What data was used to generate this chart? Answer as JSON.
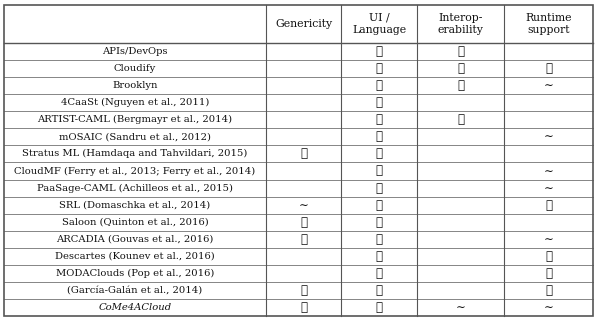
{
  "col_headers": [
    "Genericity",
    "UI /\nLanguage",
    "Interop-\nerability",
    "Runtime\nsupport"
  ],
  "rows": [
    {
      "name": "APIs/DevOps",
      "genericity": "",
      "ui": "X",
      "interop": "X",
      "runtime": ""
    },
    {
      "name": "Cloudify",
      "genericity": "",
      "ui": "X",
      "interop": "X",
      "runtime": "X"
    },
    {
      "name": "Brooklyn",
      "genericity": "",
      "ui": "X",
      "interop": "X",
      "runtime": "~"
    },
    {
      "name": "4CaaSt (Nguyen et al., 2011)",
      "genericity": "",
      "ui": "X",
      "interop": "",
      "runtime": ""
    },
    {
      "name": "ARTIST-CAML (Bergmayr et al., 2014)",
      "genericity": "",
      "ui": "X",
      "interop": "X",
      "runtime": ""
    },
    {
      "name": "mOSAIC (Sandru et al., 2012)",
      "genericity": "",
      "ui": "X",
      "interop": "",
      "runtime": "~"
    },
    {
      "name": "Stratus ML (Hamdaqa and Tahvildari, 2015)",
      "genericity": "X",
      "ui": "X",
      "interop": "",
      "runtime": ""
    },
    {
      "name": "CloudMF (Ferry et al., 2013; Ferry et al., 2014)",
      "genericity": "",
      "ui": "X",
      "interop": "",
      "runtime": "~"
    },
    {
      "name": "PaaSage-CAML (Achilleos et al., 2015)",
      "genericity": "",
      "ui": "X",
      "interop": "",
      "runtime": "~"
    },
    {
      "name": "SRL (Domaschka et al., 2014)",
      "genericity": "~",
      "ui": "X",
      "interop": "",
      "runtime": "X"
    },
    {
      "name": "Saloon (Quinton et al., 2016)",
      "genericity": "X",
      "ui": "X",
      "interop": "",
      "runtime": ""
    },
    {
      "name": "ARCADIA (Gouvas et al., 2016)",
      "genericity": "X",
      "ui": "X",
      "interop": "",
      "runtime": "~"
    },
    {
      "name": "Descartes (Kounev et al., 2016)",
      "genericity": "",
      "ui": "X",
      "interop": "",
      "runtime": "X"
    },
    {
      "name": "MODAClouds (Pop et al., 2016)",
      "genericity": "",
      "ui": "X",
      "interop": "",
      "runtime": "X"
    },
    {
      "name": "(García-Galán et al., 2014)",
      "genericity": "X",
      "ui": "X",
      "interop": "",
      "runtime": "X"
    },
    {
      "name": "CoMe4ACloud",
      "genericity": "X",
      "ui": "X",
      "interop": "~",
      "runtime": "~",
      "italic": true
    }
  ],
  "bg_color": "#ffffff",
  "line_color": "#555555",
  "text_color": "#111111",
  "check_symbol": "✓",
  "tilde_symbol": "∼",
  "font_size": 7.2,
  "header_font_size": 7.8,
  "symbol_font_size": 8.5
}
